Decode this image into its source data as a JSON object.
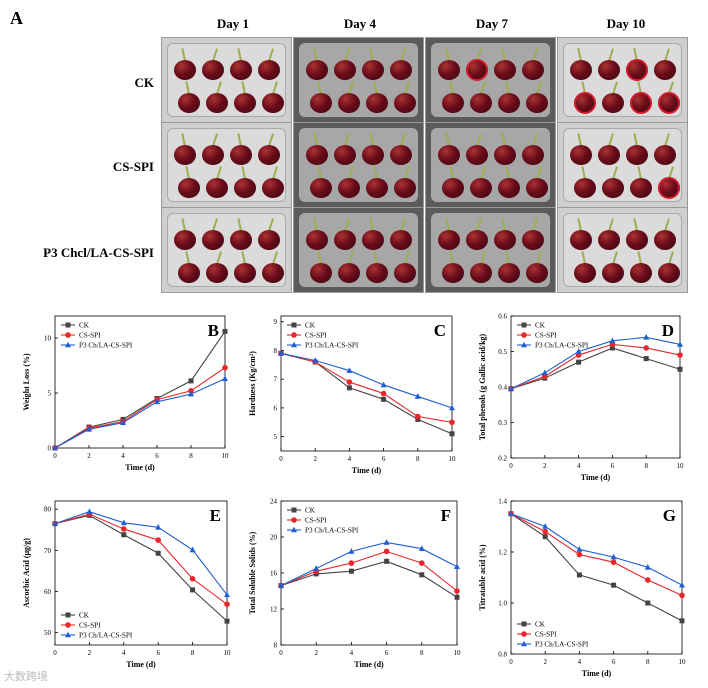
{
  "figure": {
    "panel_a_label": "A",
    "days": [
      "Day 1",
      "Day 4",
      "Day 7",
      "Day 10"
    ],
    "treatments": [
      "CK",
      "CS-SPI",
      "P3 Chcl/LA-CS-SPI"
    ],
    "watermark": "大数跨境"
  },
  "colors": {
    "CK": "#444444",
    "CS-SPI": "#e8262b",
    "P3": "#1f5fd0"
  },
  "chart_data": [
    {
      "id": "B",
      "type": "line",
      "panel_label": "B",
      "title": "",
      "xlabel": "Time (d)",
      "ylabel": "Weight Loss (%)",
      "x": [
        0,
        2,
        4,
        6,
        8,
        10
      ],
      "xticks": [
        "0",
        "2",
        "4",
        "6",
        "8",
        "10"
      ],
      "xlim": [
        0,
        10
      ],
      "yticks": [
        0,
        5,
        10
      ],
      "ylim": [
        0,
        12
      ],
      "legend": "top-left",
      "series": [
        {
          "name": "CK",
          "values": [
            0,
            1.9,
            2.6,
            4.5,
            6.1,
            10.6
          ]
        },
        {
          "name": "CS-SPI",
          "values": [
            0,
            1.8,
            2.4,
            4.4,
            5.2,
            7.3
          ]
        },
        {
          "name": "P3 Ch/LA-CS-SPI",
          "values": [
            0,
            1.7,
            2.3,
            4.2,
            4.9,
            6.3
          ]
        }
      ]
    },
    {
      "id": "C",
      "type": "line",
      "panel_label": "C",
      "title": "",
      "xlabel": "Time (d)",
      "ylabel": "Hardness (Kg/cm²)",
      "x": [
        0,
        2,
        4,
        6,
        8,
        10
      ],
      "xticks": [
        "0",
        "2",
        "4",
        "6",
        "8",
        "10"
      ],
      "xlim": [
        0,
        10
      ],
      "yticks": [
        5,
        6,
        7,
        8,
        9
      ],
      "ylim": [
        4.5,
        9.2
      ],
      "legend": "top-left",
      "series": [
        {
          "name": "CK",
          "values": [
            7.9,
            7.6,
            6.7,
            6.3,
            5.6,
            5.1
          ]
        },
        {
          "name": "CS-SPI",
          "values": [
            7.9,
            7.6,
            6.9,
            6.5,
            5.7,
            5.5
          ]
        },
        {
          "name": "P3 Ch/LA-CS-SPI",
          "values": [
            7.9,
            7.65,
            7.3,
            6.8,
            6.4,
            6.0
          ]
        }
      ]
    },
    {
      "id": "D",
      "type": "line",
      "panel_label": "D",
      "title": "",
      "xlabel": "Time (d)",
      "ylabel": "Total phenols (g Gallic acid/kg)",
      "x": [
        0,
        2,
        4,
        6,
        8,
        10
      ],
      "xticks": [
        "0",
        "2",
        "4",
        "6",
        "8",
        "10"
      ],
      "xlim": [
        0,
        10
      ],
      "yticks": [
        0.2,
        0.3,
        0.4,
        0.5,
        0.6
      ],
      "ylim": [
        0.2,
        0.6
      ],
      "legend": "top-left",
      "series": [
        {
          "name": "CK",
          "values": [
            0.395,
            0.425,
            0.47,
            0.51,
            0.48,
            0.45
          ]
        },
        {
          "name": "CS-SPI",
          "values": [
            0.395,
            0.43,
            0.49,
            0.52,
            0.51,
            0.49
          ]
        },
        {
          "name": "P3 Ch/LA-CS-SPI",
          "values": [
            0.395,
            0.44,
            0.5,
            0.53,
            0.54,
            0.52
          ]
        }
      ]
    },
    {
      "id": "E",
      "type": "line",
      "panel_label": "E",
      "title": "",
      "xlabel": "Time (d)",
      "ylabel": "Ascorbic Acid (μg/g)",
      "x": [
        0,
        2,
        4,
        6,
        8,
        10
      ],
      "xticks": [
        "0",
        "2",
        "4",
        "6",
        "8",
        "10"
      ],
      "xlim": [
        0,
        10
      ],
      "yticks": [
        50,
        60,
        70,
        80
      ],
      "ylim": [
        47,
        82
      ],
      "legend": "bottom-left",
      "series": [
        {
          "name": "CK",
          "values": [
            76.5,
            78.5,
            73.8,
            69.3,
            60.4,
            52.8
          ]
        },
        {
          "name": "CS-SPI",
          "values": [
            76.5,
            78.8,
            75.2,
            72.5,
            63.1,
            56.9
          ]
        },
        {
          "name": "P3 Ch/LA-CS-SPI",
          "values": [
            76.5,
            79.4,
            76.7,
            75.6,
            70.1,
            59.2
          ]
        }
      ]
    },
    {
      "id": "F",
      "type": "line",
      "panel_label": "F",
      "title": "",
      "xlabel": "Time (d)",
      "ylabel": "Total Soluble Solids (%)",
      "x": [
        0,
        2,
        4,
        6,
        8,
        10
      ],
      "xticks": [
        "0",
        "2",
        "4",
        "6",
        "8",
        "10"
      ],
      "xlim": [
        0,
        10
      ],
      "yticks": [
        8,
        12,
        16,
        20,
        24
      ],
      "ylim": [
        8,
        24
      ],
      "legend": "top-left",
      "series": [
        {
          "name": "CK",
          "values": [
            14.6,
            15.9,
            16.2,
            17.3,
            15.8,
            13.3
          ]
        },
        {
          "name": "CS-SPI",
          "values": [
            14.6,
            16.2,
            17.1,
            18.4,
            17.1,
            14.0
          ]
        },
        {
          "name": "P3 Ch/LA-CS-SPI",
          "values": [
            14.6,
            16.5,
            18.4,
            19.4,
            18.7,
            16.7
          ]
        }
      ]
    },
    {
      "id": "G",
      "type": "line",
      "panel_label": "G",
      "title": "",
      "xlabel": "Time (d)",
      "ylabel": "Titratable acid (%)",
      "x": [
        0,
        2,
        4,
        6,
        8,
        10
      ],
      "xticks": [
        "0",
        "2",
        "4",
        "6",
        "8",
        "10"
      ],
      "xlim": [
        0,
        10
      ],
      "yticks": [
        0.8,
        1.0,
        1.2,
        1.4
      ],
      "ylim": [
        0.8,
        1.4
      ],
      "legend": "bottom-left",
      "series": [
        {
          "name": "CK",
          "values": [
            1.35,
            1.26,
            1.11,
            1.07,
            1.0,
            0.93
          ]
        },
        {
          "name": "CS-SPI",
          "values": [
            1.35,
            1.28,
            1.19,
            1.16,
            1.09,
            1.03
          ]
        },
        {
          "name": "P3 Ch/LA-CS-SPI",
          "values": [
            1.35,
            1.3,
            1.21,
            1.18,
            1.14,
            1.07
          ]
        }
      ]
    }
  ]
}
